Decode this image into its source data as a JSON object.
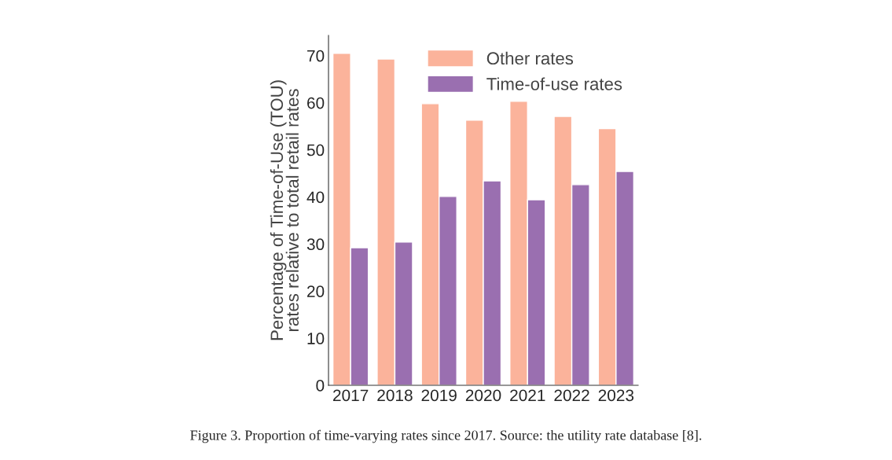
{
  "chart_data": {
    "type": "bar",
    "categories": [
      "2017",
      "2018",
      "2019",
      "2020",
      "2021",
      "2022",
      "2023"
    ],
    "series": [
      {
        "name": "Other rates",
        "color": "#fbb39b",
        "values": [
          70.5,
          69.3,
          59.8,
          56.3,
          60.3,
          57.1,
          54.5
        ]
      },
      {
        "name": "Time-of-use rates",
        "color": "#9a6fb0",
        "values": [
          29.2,
          30.4,
          40.1,
          43.4,
          39.4,
          42.6,
          45.4
        ]
      }
    ],
    "ylabel": "Percentage of Time-of-Use (TOU)\nrates relative to total retail rates",
    "ylim": [
      0,
      74.3
    ],
    "yticks": [
      0,
      10,
      20,
      30,
      40,
      50,
      60,
      70
    ],
    "grid": false,
    "legend": "top right",
    "annotations": [
      "Figure 3. Proportion of time-varying rates since 2017. Source: the utility rate database [8]."
    ]
  }
}
